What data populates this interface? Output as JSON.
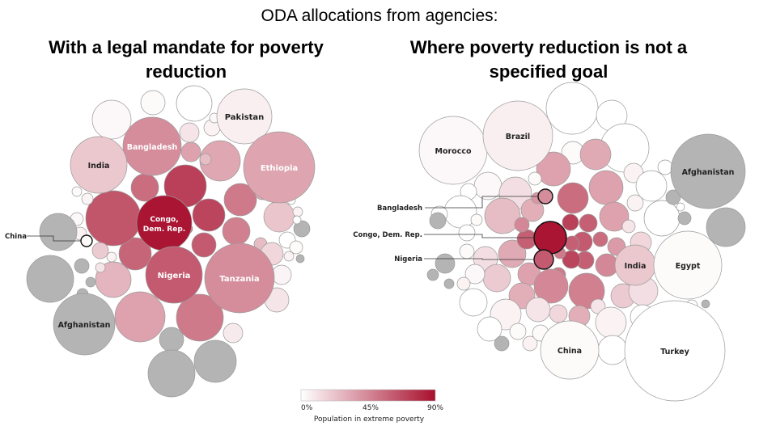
{
  "title": "ODA allocations from agencies:",
  "chart_data": [
    {
      "type": "bubble",
      "title": "With a legal mandate for poverty reduction",
      "color_metric": "Population in extreme poverty",
      "bubbles": [
        {
          "label": "Pakistan",
          "poverty": 0.06
        },
        {
          "label": "Bangladesh",
          "poverty": 0.43
        },
        {
          "label": "India",
          "poverty": 0.21
        },
        {
          "label": "Ethiopia",
          "poverty": 0.34
        },
        {
          "label": "Congo, Dem. Rep.",
          "poverty": 0.88
        },
        {
          "label": "China",
          "poverty": 0.02
        },
        {
          "label": "Nigeria",
          "poverty": 0.62
        },
        {
          "label": "Tanzania",
          "poverty": 0.43
        },
        {
          "label": "Afghanistan",
          "poverty": null
        }
      ]
    },
    {
      "type": "bubble",
      "title": "Where poverty reduction is not a specified goal",
      "color_metric": "Population in extreme poverty",
      "bubbles": [
        {
          "label": "Morocco",
          "poverty": 0.03
        },
        {
          "label": "Brazil",
          "poverty": 0.06
        },
        {
          "label": "Afghanistan",
          "poverty": null
        },
        {
          "label": "Bangladesh",
          "poverty": 0.43
        },
        {
          "label": "Congo, Dem. Rep.",
          "poverty": 0.88
        },
        {
          "label": "Nigeria",
          "poverty": 0.62
        },
        {
          "label": "India",
          "poverty": 0.21
        },
        {
          "label": "Egypt",
          "poverty": 0.02
        },
        {
          "label": "China",
          "poverty": 0.02
        },
        {
          "label": "Turkey",
          "poverty": 0.0
        }
      ]
    }
  ],
  "legend": {
    "title": "Population in extreme poverty",
    "ticks": [
      "0%",
      "45%",
      "90%"
    ],
    "color_low": "#ffffff",
    "color_high": "#a8102e",
    "no_data_color": "#b4b4b4"
  }
}
